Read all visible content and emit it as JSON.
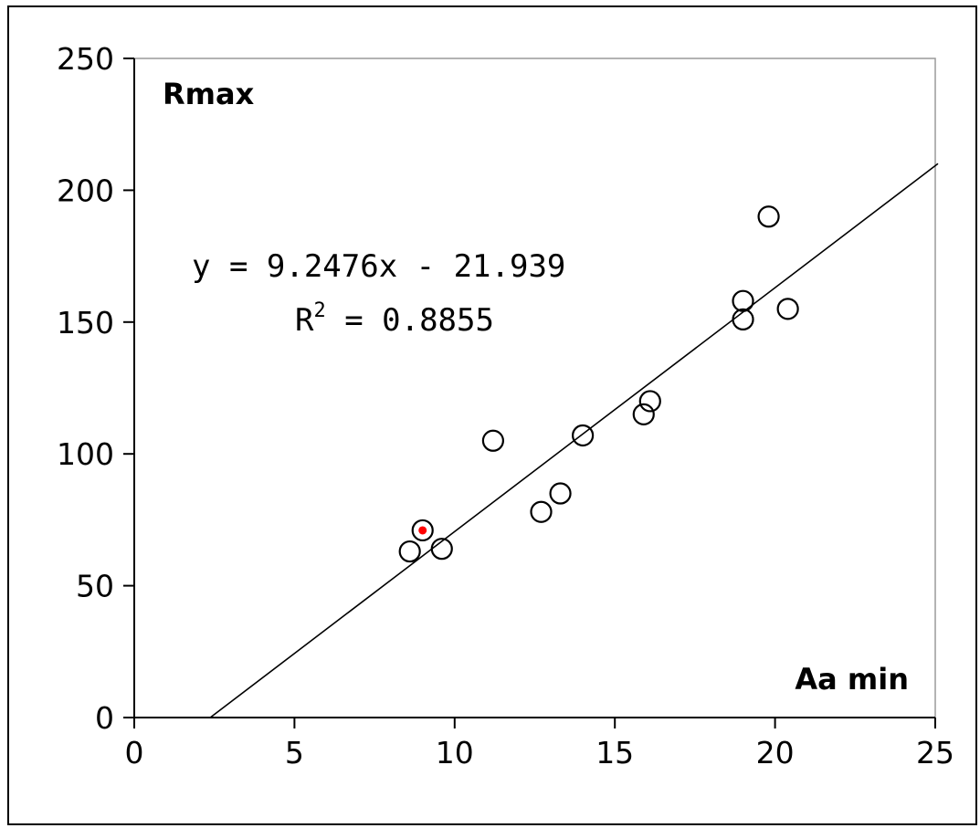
{
  "chart_data": {
    "type": "scatter",
    "title": "",
    "xlabel": "Aa min",
    "ylabel": "Rmax",
    "xlim": [
      0,
      25
    ],
    "ylim": [
      0,
      250
    ],
    "x_ticks": [
      "0",
      "5",
      "10",
      "15",
      "20",
      "25"
    ],
    "y_ticks": [
      "0",
      "50",
      "100",
      "150",
      "200",
      "250"
    ],
    "grid": false,
    "series": [
      {
        "marker": "open-circle",
        "points": [
          {
            "x": 8.6,
            "y": 63
          },
          {
            "x": 9.0,
            "y": 71
          },
          {
            "x": 9.6,
            "y": 64
          },
          {
            "x": 11.2,
            "y": 105
          },
          {
            "x": 12.7,
            "y": 78
          },
          {
            "x": 13.3,
            "y": 85
          },
          {
            "x": 14.0,
            "y": 107
          },
          {
            "x": 15.9,
            "y": 115
          },
          {
            "x": 16.1,
            "y": 120
          },
          {
            "x": 19.0,
            "y": 158
          },
          {
            "x": 19.0,
            "y": 151
          },
          {
            "x": 19.8,
            "y": 190
          },
          {
            "x": 20.4,
            "y": 155
          }
        ]
      }
    ],
    "highlight_point": {
      "x": 9.0,
      "y": 71,
      "color": "#ff0000"
    },
    "trendline": {
      "slope": 9.2476,
      "intercept": -21.939,
      "equation": "y = 9.2476x - 21.939",
      "r2_prefix": "R",
      "r2_sup": "2",
      "r2_suffix": " = 0.8855"
    },
    "colors": {
      "marker_stroke": "#000000",
      "highlight": "#ff0000",
      "line": "#000000",
      "plot_border": "#9a9a9a"
    }
  }
}
